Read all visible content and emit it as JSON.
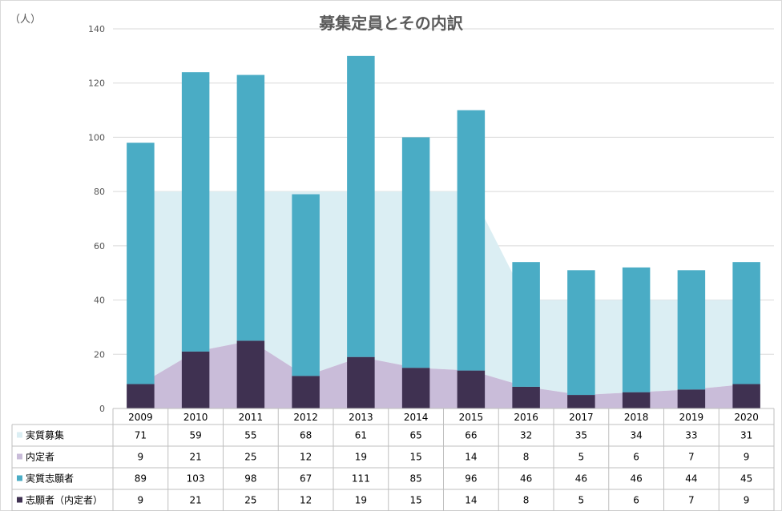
{
  "chart_data": {
    "type": "bar",
    "title": "募集定員とその内訳",
    "ylabel": "（人）",
    "ylim": [
      0,
      140
    ],
    "yticks": [
      0,
      20,
      40,
      60,
      80,
      100,
      120,
      140
    ],
    "grid": true,
    "categories": [
      "2009",
      "2010",
      "2011",
      "2012",
      "2013",
      "2014",
      "2015",
      "2016",
      "2017",
      "2018",
      "2019",
      "2020"
    ],
    "series": [
      {
        "name": "実質募集",
        "chart": "area",
        "values": [
          71,
          59,
          55,
          68,
          61,
          65,
          66,
          32,
          35,
          34,
          33,
          31
        ]
      },
      {
        "name": "内定者",
        "chart": "area",
        "values": [
          9,
          21,
          25,
          12,
          19,
          15,
          14,
          8,
          5,
          6,
          7,
          9
        ]
      },
      {
        "name": "実質志願者",
        "chart": "stacked-bar",
        "values": [
          89,
          103,
          98,
          67,
          111,
          85,
          96,
          46,
          46,
          46,
          44,
          45
        ]
      },
      {
        "name": "志願者（内定者）",
        "chart": "stacked-bar",
        "values": [
          9,
          21,
          25,
          12,
          19,
          15,
          14,
          8,
          5,
          6,
          7,
          9
        ]
      }
    ],
    "colors": {
      "実質募集": "#dbeef3",
      "内定者": "#c9bcd9",
      "実質志願者": "#4aacc5",
      "志願者（内定者）": "#3f3151",
      "grid": "#d9d9d9",
      "border": "#bfbfbf"
    }
  }
}
